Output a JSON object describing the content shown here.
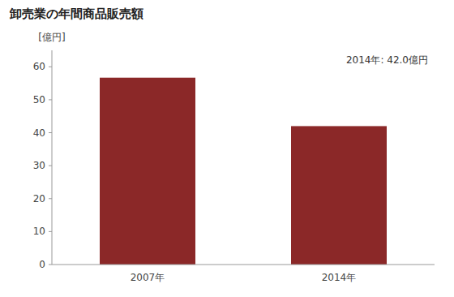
{
  "chart_data": {
    "type": "bar",
    "title": "卸売業の年間商品販売額",
    "ylabel": "[億円]",
    "categories": [
      "2007年",
      "2014年"
    ],
    "values": [
      56.7,
      42.0
    ],
    "color": "#8B2828",
    "annotation": "2014年: 42.0億円",
    "ylim": [
      0,
      65
    ],
    "yticks": [
      0,
      10,
      20,
      30,
      40,
      50,
      60
    ],
    "grid": false
  }
}
